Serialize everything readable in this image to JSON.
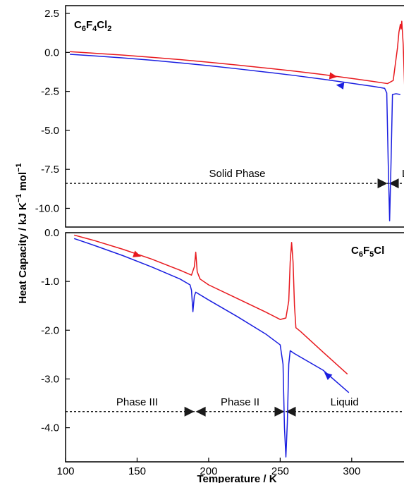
{
  "chart_data": [
    {
      "type": "line",
      "formula": {
        "parts": [
          {
            "t": "C",
            "sub": false
          },
          {
            "t": "6",
            "sub": true
          },
          {
            "t": "F",
            "sub": false
          },
          {
            "t": "4",
            "sub": true
          },
          {
            "t": "Cl",
            "sub": false
          },
          {
            "t": "2",
            "sub": true
          }
        ]
      },
      "xlim": [
        100,
        340
      ],
      "ylim": [
        -11.2,
        3.0
      ],
      "yticks": [
        2.5,
        0.0,
        -2.5,
        -5.0,
        -7.5,
        -10.0
      ],
      "ytick_labels": [
        "2.5",
        "0.0",
        "-2.5",
        "-5.0",
        "-7.5",
        "-10.0"
      ],
      "series": [
        {
          "color": "#e8191e",
          "direction": "heating",
          "x": [
            103,
            120,
            140,
            160,
            180,
            200,
            220,
            240,
            260,
            280,
            300,
            315,
            325,
            329,
            330,
            332,
            333,
            334,
            334.5,
            335,
            336,
            337,
            340
          ],
          "y": [
            0.05,
            -0.05,
            -0.17,
            -0.31,
            -0.46,
            -0.63,
            -0.81,
            -1.0,
            -1.2,
            -1.42,
            -1.67,
            -1.86,
            -2.0,
            -1.8,
            -1.1,
            0.3,
            1.3,
            1.8,
            1.5,
            2.0,
            0.5,
            -2.3,
            -2.4
          ],
          "arrow": {
            "x": 287,
            "y": -1.53
          }
        },
        {
          "color": "#1a1ee0",
          "direction": "cooling",
          "x": [
            103,
            120,
            140,
            160,
            180,
            200,
            220,
            240,
            260,
            280,
            300,
            315,
            323,
            324.5,
            325.5,
            326.5,
            327.5,
            328.5,
            331,
            334
          ],
          "y": [
            -0.12,
            -0.22,
            -0.35,
            -0.5,
            -0.67,
            -0.85,
            -1.05,
            -1.26,
            -1.48,
            -1.72,
            -1.98,
            -2.18,
            -2.3,
            -2.6,
            -7.0,
            -10.8,
            -7.0,
            -2.7,
            -2.65,
            -2.7
          ],
          "arrow": {
            "x": 292,
            "y": -2.12
          }
        }
      ],
      "phase_level": -8.4,
      "regions": [
        {
          "label": "Solid Phase",
          "x": 220
        },
        {
          "label": "Liq",
          "x": 340
        }
      ],
      "boundaries": [
        325.5
      ]
    },
    {
      "type": "line",
      "formula": {
        "parts": [
          {
            "t": "C",
            "sub": false
          },
          {
            "t": "6",
            "sub": true
          },
          {
            "t": "F",
            "sub": false
          },
          {
            "t": "5",
            "sub": true
          },
          {
            "t": "Cl",
            "sub": false
          }
        ]
      },
      "xlim": [
        100,
        340
      ],
      "ylim": [
        -4.7,
        0.0
      ],
      "yticks": [
        0.0,
        -1.0,
        -2.0,
        -3.0,
        -4.0
      ],
      "ytick_labels": [
        "0.0",
        "-1.0",
        "-2.0",
        "-3.0",
        "-4.0"
      ],
      "xticks": [
        100,
        150,
        200,
        250,
        300
      ],
      "xtick_labels": [
        "100",
        "150",
        "200",
        "250",
        "300"
      ],
      "series": [
        {
          "color": "#e8191e",
          "direction": "heating",
          "x": [
            106,
            120,
            140,
            160,
            180,
            188,
            190,
            191,
            192,
            194,
            200,
            220,
            240,
            250,
            254,
            256,
            257,
            258,
            259,
            260,
            261,
            264,
            280,
            297
          ],
          "y": [
            -0.05,
            -0.16,
            -0.34,
            -0.54,
            -0.77,
            -0.87,
            -0.7,
            -0.4,
            -0.8,
            -0.95,
            -1.07,
            -1.35,
            -1.63,
            -1.78,
            -1.75,
            -1.4,
            -0.6,
            -0.2,
            -0.6,
            -1.5,
            -1.95,
            -2.02,
            -2.45,
            -2.9
          ],
          "arrow": {
            "x": 150,
            "y": -0.46
          }
        },
        {
          "color": "#1a1ee0",
          "direction": "cooling",
          "x": [
            106,
            120,
            140,
            160,
            180,
            187,
            188,
            189,
            190,
            191,
            200,
            220,
            240,
            250,
            252,
            253,
            254,
            255,
            256,
            257,
            260,
            280,
            298
          ],
          "y": [
            -0.12,
            -0.26,
            -0.47,
            -0.7,
            -0.95,
            -1.07,
            -1.18,
            -1.62,
            -1.3,
            -1.22,
            -1.38,
            -1.72,
            -2.08,
            -2.3,
            -2.7,
            -4.0,
            -4.6,
            -3.9,
            -2.7,
            -2.42,
            -2.48,
            -2.82,
            -3.28
          ],
          "arrow": {
            "x": 283,
            "y": -2.92
          }
        }
      ],
      "phase_level": -3.67,
      "regions": [
        {
          "label": "Phase III",
          "x": 150
        },
        {
          "label": "Phase II",
          "x": 222
        },
        {
          "label": "Liquid",
          "x": 295
        }
      ],
      "boundaries": [
        190.5,
        253.5
      ]
    }
  ],
  "axes": {
    "ylabel": {
      "parts": [
        {
          "t": "Heat Capacity  /  kJ K",
          "sup": false
        },
        {
          "t": "−1",
          "sup": true
        },
        {
          "t": " mol",
          "sup": false
        },
        {
          "t": "−1",
          "sup": true
        }
      ]
    },
    "xlabel": "Temperature  / K"
  }
}
